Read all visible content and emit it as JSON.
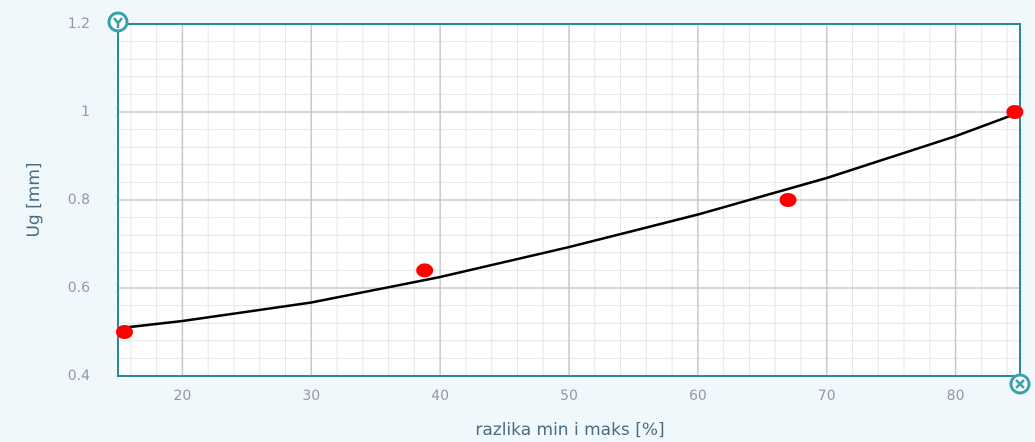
{
  "chart_data": {
    "type": "scatter",
    "x_label": "razlika min i maks [%]",
    "y_label": "Ug [mm]",
    "x": [
      15.5,
      38.8,
      67,
      84.6
    ],
    "values": [
      0.5,
      0.64,
      0.8,
      1.0
    ],
    "color": "#ff0000",
    "trend": {
      "x": [
        15.5,
        20,
        30,
        40,
        50,
        60,
        70,
        80,
        84.6
      ],
      "values": [
        0.51,
        0.525,
        0.567,
        0.625,
        0.693,
        0.767,
        0.85,
        0.945,
        0.995
      ],
      "color": "#000000"
    },
    "xlim": [
      15,
      85
    ],
    "xticks": [
      20,
      30,
      40,
      50,
      60,
      70,
      80
    ],
    "ylim": [
      0.4,
      1.2
    ],
    "yticks": [
      0.4,
      0.6,
      0.8,
      1,
      1.2
    ],
    "grid": true,
    "minor_divisions": 5
  }
}
